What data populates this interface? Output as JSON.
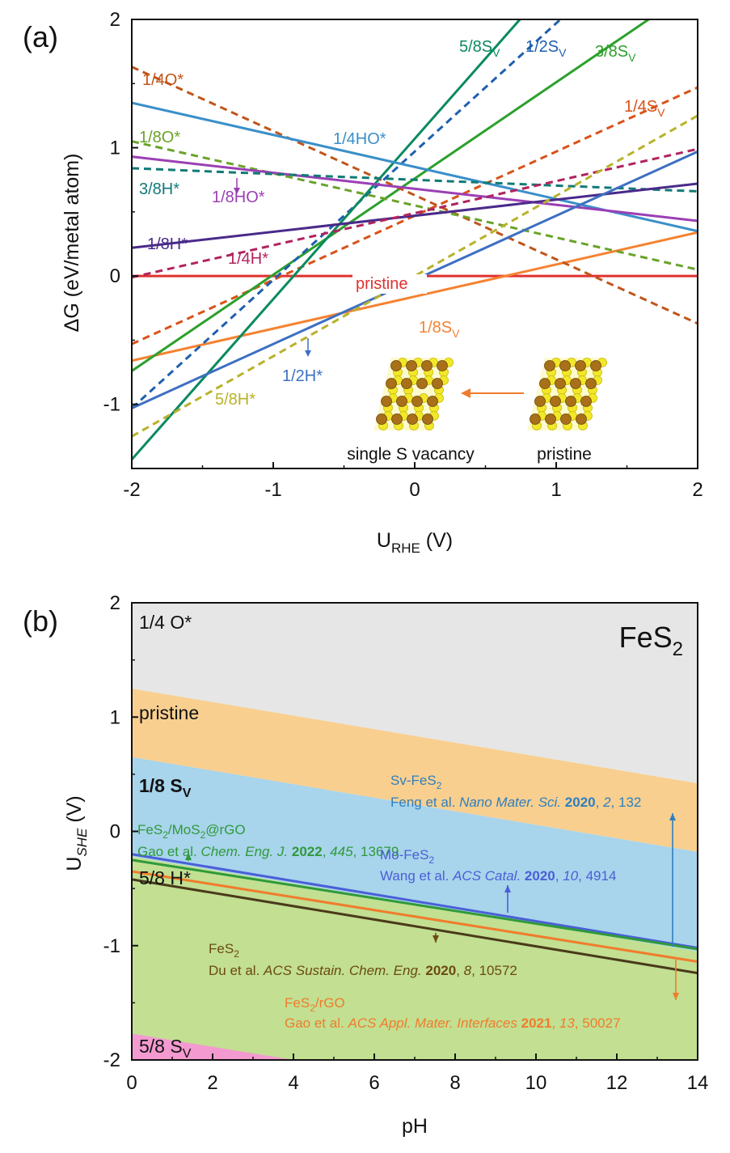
{
  "chart_data": [
    {
      "panel": "(a)",
      "type": "line",
      "xlabel": "U",
      "xlabel_sub": "RHE",
      "xlabel_unit": " (V)",
      "ylabel": "ΔG (eV/metal atom)",
      "xlim": [
        -2,
        2
      ],
      "ylim": [
        -1.5,
        2
      ],
      "xticks": [
        "-2",
        "-1",
        "0",
        "1",
        "2"
      ],
      "yticks": [
        "-1",
        "0",
        "1",
        "2"
      ],
      "series": [
        {
          "name": "pristine",
          "style": "solid",
          "color": "#e0312f",
          "x": [
            -2,
            2
          ],
          "y": [
            0,
            0
          ]
        },
        {
          "name": "1/8S",
          "name_sub": "V",
          "style": "solid",
          "color": "#f58231",
          "x": [
            -2,
            2
          ],
          "y": [
            -0.66,
            0.34
          ]
        },
        {
          "name": "1/4S",
          "name_sub": "V",
          "style": "dashed",
          "color": "#d95219",
          "x": [
            -2,
            2
          ],
          "y": [
            -0.53,
            1.47
          ]
        },
        {
          "name": "3/8S",
          "name_sub": "V",
          "style": "solid",
          "color": "#2ca02c",
          "x": [
            -2,
            2
          ],
          "y": [
            -0.74,
            2.26
          ]
        },
        {
          "name": "1/2S",
          "name_sub": "V",
          "style": "dashed",
          "color": "#1f5fb0",
          "x": [
            -2,
            2
          ],
          "y": [
            -1.03,
            2.97
          ]
        },
        {
          "name": "5/8S",
          "name_sub": "V",
          "style": "solid",
          "color": "#0b8a5f",
          "x": [
            -2,
            2
          ],
          "y": [
            -1.43,
            3.57
          ]
        },
        {
          "name": "1/4O*",
          "style": "dashed",
          "color": "#c0551b",
          "x": [
            -2,
            2
          ],
          "y": [
            1.63,
            -0.37
          ]
        },
        {
          "name": "1/8O*",
          "style": "dashed",
          "color": "#6aa329",
          "x": [
            -2,
            2
          ],
          "y": [
            1.05,
            0.05
          ]
        },
        {
          "name": "1/4HO*",
          "style": "solid",
          "color": "#3a8fc8",
          "x": [
            -2,
            2
          ],
          "y": [
            1.35,
            0.35
          ]
        },
        {
          "name": "1/8HO*",
          "style": "solid",
          "color": "#9b3fb5",
          "x": [
            -2,
            2
          ],
          "y": [
            0.93,
            0.43
          ]
        },
        {
          "name": "3/8H*",
          "style": "dashed",
          "color": "#117a76",
          "x": [
            -2,
            2
          ],
          "y": [
            0.84,
            0.66
          ]
        },
        {
          "name": "1/8H*",
          "style": "solid",
          "color": "#4a2a8a",
          "x": [
            -2,
            2
          ],
          "y": [
            0.22,
            0.72
          ]
        },
        {
          "name": "1/4H*",
          "style": "dashed",
          "color": "#b0245e",
          "x": [
            -2,
            2
          ],
          "y": [
            -0.01,
            0.99
          ]
        },
        {
          "name": "1/2H*",
          "style": "solid",
          "color": "#3d6fc2",
          "x": [
            -2,
            2
          ],
          "y": [
            -1.03,
            0.97
          ]
        },
        {
          "name": "5/8H*",
          "style": "dashed",
          "color": "#b8b22a",
          "x": [
            -2,
            2
          ],
          "y": [
            -1.25,
            1.25
          ]
        }
      ],
      "inset": {
        "left_label": "single S vacancy",
        "right_label": "pristine"
      }
    },
    {
      "panel": "(b)",
      "type": "area",
      "title": "FeS",
      "title_sub": "2",
      "xlabel": "pH",
      "ylabel": "U",
      "ylabel_sub": "SHE",
      "ylabel_unit": " (V)",
      "xlim": [
        0,
        14
      ],
      "ylim": [
        -2,
        2
      ],
      "xticks": [
        "0",
        "2",
        "4",
        "6",
        "8",
        "10",
        "12",
        "14"
      ],
      "yticks": [
        "-2",
        "-1",
        "0",
        "1",
        "2"
      ],
      "regions": [
        {
          "name": "1/4 O*",
          "color": "#e6e6e6",
          "y_top": [
            2,
            2
          ],
          "y_bottom": [
            1.25,
            0.42
          ]
        },
        {
          "name": "pristine",
          "color": "#f8cf8f",
          "y_top": [
            1.25,
            0.42
          ],
          "y_bottom": [
            0.65,
            -0.18
          ]
        },
        {
          "name": "1/8 S",
          "name_sub": "V",
          "color": "#a8d4ec",
          "y_top": [
            0.65,
            -0.18
          ],
          "y_bottom": [
            -0.22,
            -1.05
          ]
        },
        {
          "name": "5/8 H*",
          "color": "#c2df92",
          "y_top": [
            -0.22,
            -1.05
          ],
          "y_bottom": [
            -2,
            -2
          ]
        },
        {
          "name": "5/8 S",
          "name_sub": "V",
          "color": "#f39ad0",
          "polygon": [
            [
              0,
              -1.77
            ],
            [
              0,
              -2
            ],
            [
              4,
              -2
            ]
          ]
        }
      ],
      "reference_lines": [
        {
          "id": "mo",
          "color": "#4a5fd6",
          "y": [
            -0.2,
            -1.02
          ]
        },
        {
          "id": "mos2",
          "color": "#2f9a3a",
          "y": [
            -0.25,
            -1.03
          ]
        },
        {
          "id": "du",
          "color": "#4a3a1a",
          "y": [
            -0.42,
            -1.24
          ]
        },
        {
          "id": "rgo",
          "color": "#f07c2c",
          "y": [
            -0.35,
            -1.14
          ]
        }
      ],
      "annotations": [
        {
          "id": "sv",
          "color": "#2f7fbf",
          "line1": "Sv-FeS",
          "line1_sub": "2",
          "authors": "Feng et al. ",
          "journal": "Nano Mater. Sci.",
          "year": "2020",
          "vol": "2",
          "pages": "132"
        },
        {
          "id": "mos2",
          "color": "#2f9a3a",
          "line1": "FeS",
          "line1_sub": "2",
          "line1_rest": "/MoS",
          "line1_sub2": "2",
          "line1_end": "@rGO",
          "authors": "Gao et al. ",
          "journal": "Chem. Eng. J.",
          "year": "2022",
          "vol": "445",
          "pages": "13679"
        },
        {
          "id": "mo",
          "color": "#4a5fd6",
          "line1": "Mo-FeS",
          "line1_sub": "2",
          "authors": "Wang et al. ",
          "journal": "ACS Catal.",
          "year": "2020",
          "vol": "10",
          "pages": "4914"
        },
        {
          "id": "du",
          "color": "#6b4a10",
          "line1": "FeS",
          "line1_sub": "2",
          "authors": "Du et al. ",
          "journal": "ACS Sustain. Chem. Eng.",
          "year": "2020",
          "vol": "8",
          "pages": "10572"
        },
        {
          "id": "rgo",
          "color": "#f07c2c",
          "line1": "FeS",
          "line1_sub": "2",
          "line1_rest": "/rGO",
          "authors": "Gao et al. ",
          "journal": "ACS Appl. Mater. Interfaces",
          "year": "2021",
          "vol": "13",
          "pages": "50027"
        }
      ]
    }
  ]
}
